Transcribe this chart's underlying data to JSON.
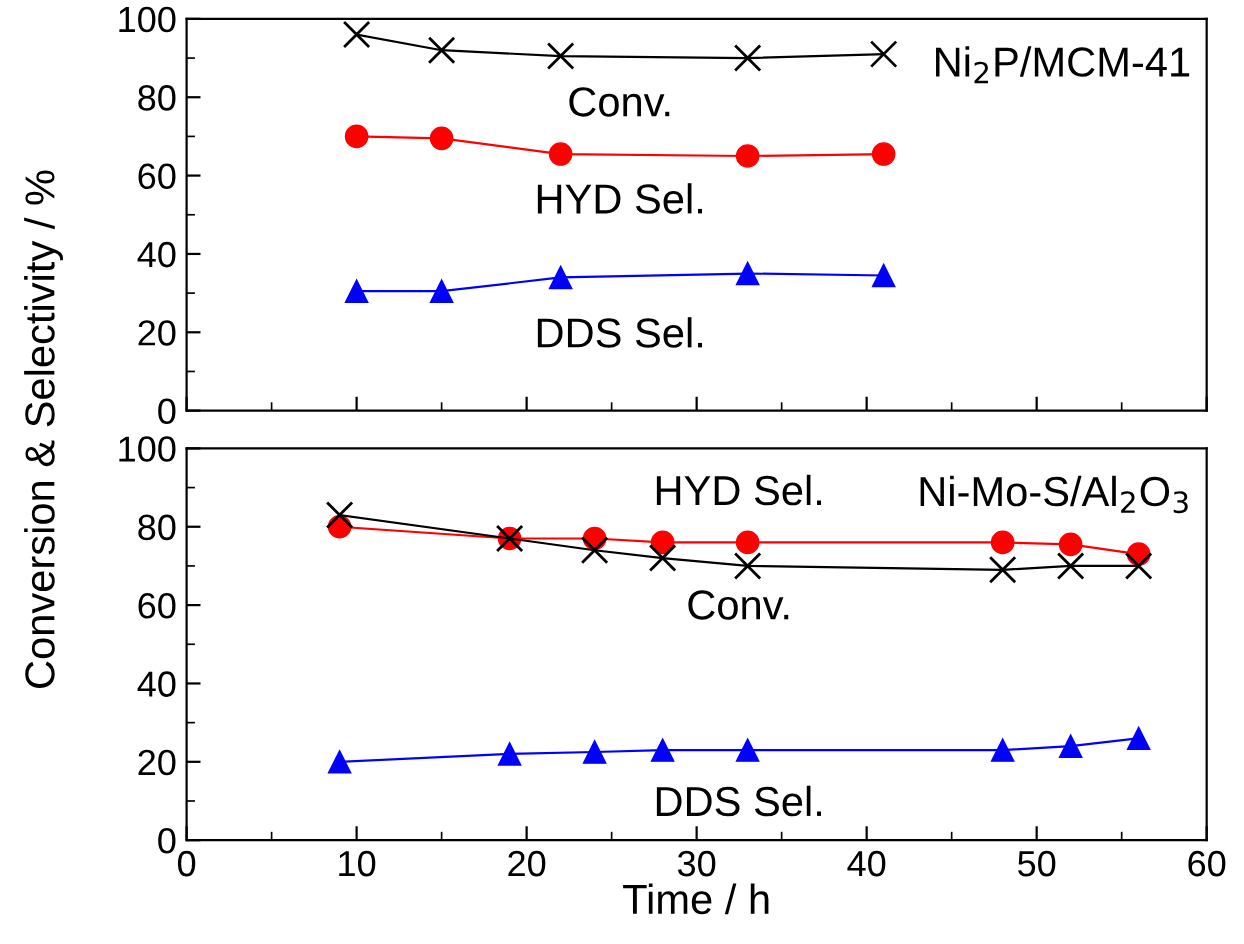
{
  "chart_data": [
    {
      "type": "line",
      "ylabel": "Conversion & Selectivity / %",
      "xlim": [
        0,
        60
      ],
      "xticks": [
        0,
        10,
        20,
        30,
        40,
        50,
        60
      ],
      "ylim": [
        0,
        100
      ],
      "yticks": [
        0,
        20,
        40,
        60,
        80,
        100
      ],
      "tick_labels": "y",
      "grid": false,
      "legend": false,
      "annotations": [
        "Ni$_{2}$P/MCM-41"
      ],
      "series": [
        {
          "name": "Conv.",
          "color": "#000000",
          "marker": "cross",
          "x": [
            10,
            15,
            22,
            33,
            41
          ],
          "values": [
            96,
            92,
            90.5,
            90,
            91
          ]
        },
        {
          "name": "HYD Sel.",
          "color": "#ff0000",
          "marker": "circle",
          "x": [
            10,
            15,
            22,
            33,
            41
          ],
          "values": [
            70,
            69.5,
            65.5,
            65,
            65.5
          ]
        },
        {
          "name": "DDS Sel.",
          "color": "#0000ff",
          "marker": "triangle",
          "x": [
            10,
            15,
            22,
            33,
            41
          ],
          "values": [
            30.5,
            30.5,
            34,
            35,
            34.5
          ]
        }
      ]
    },
    {
      "type": "line",
      "xlabel": "Time / h",
      "xlim": [
        0,
        60
      ],
      "xticks": [
        0,
        10,
        20,
        30,
        40,
        50,
        60
      ],
      "ylim": [
        0,
        100
      ],
      "yticks": [
        0,
        20,
        40,
        60,
        80,
        100
      ],
      "grid": false,
      "legend": false,
      "annotations": [
        "Ni-Mo-S/Al$_{2}$O$_{3}$"
      ],
      "series": [
        {
          "name": "Conv.",
          "color": "#000000",
          "marker": "cross",
          "x": [
            9,
            19,
            24,
            28,
            33,
            48,
            52,
            56
          ],
          "values": [
            83,
            77,
            74,
            72,
            70,
            69,
            70,
            70
          ]
        },
        {
          "name": "HYD Sel.",
          "color": "#ff0000",
          "marker": "circle",
          "x": [
            9,
            19,
            24,
            28,
            33,
            48,
            52,
            56
          ],
          "values": [
            80,
            77,
            77,
            76,
            76,
            76,
            75.5,
            73
          ]
        },
        {
          "name": "DDS Sel.",
          "color": "#0000ff",
          "marker": "triangle",
          "x": [
            9,
            19,
            24,
            28,
            33,
            48,
            52,
            56
          ],
          "values": [
            20,
            22,
            22.5,
            23,
            23,
            23,
            24,
            26
          ]
        }
      ]
    }
  ]
}
